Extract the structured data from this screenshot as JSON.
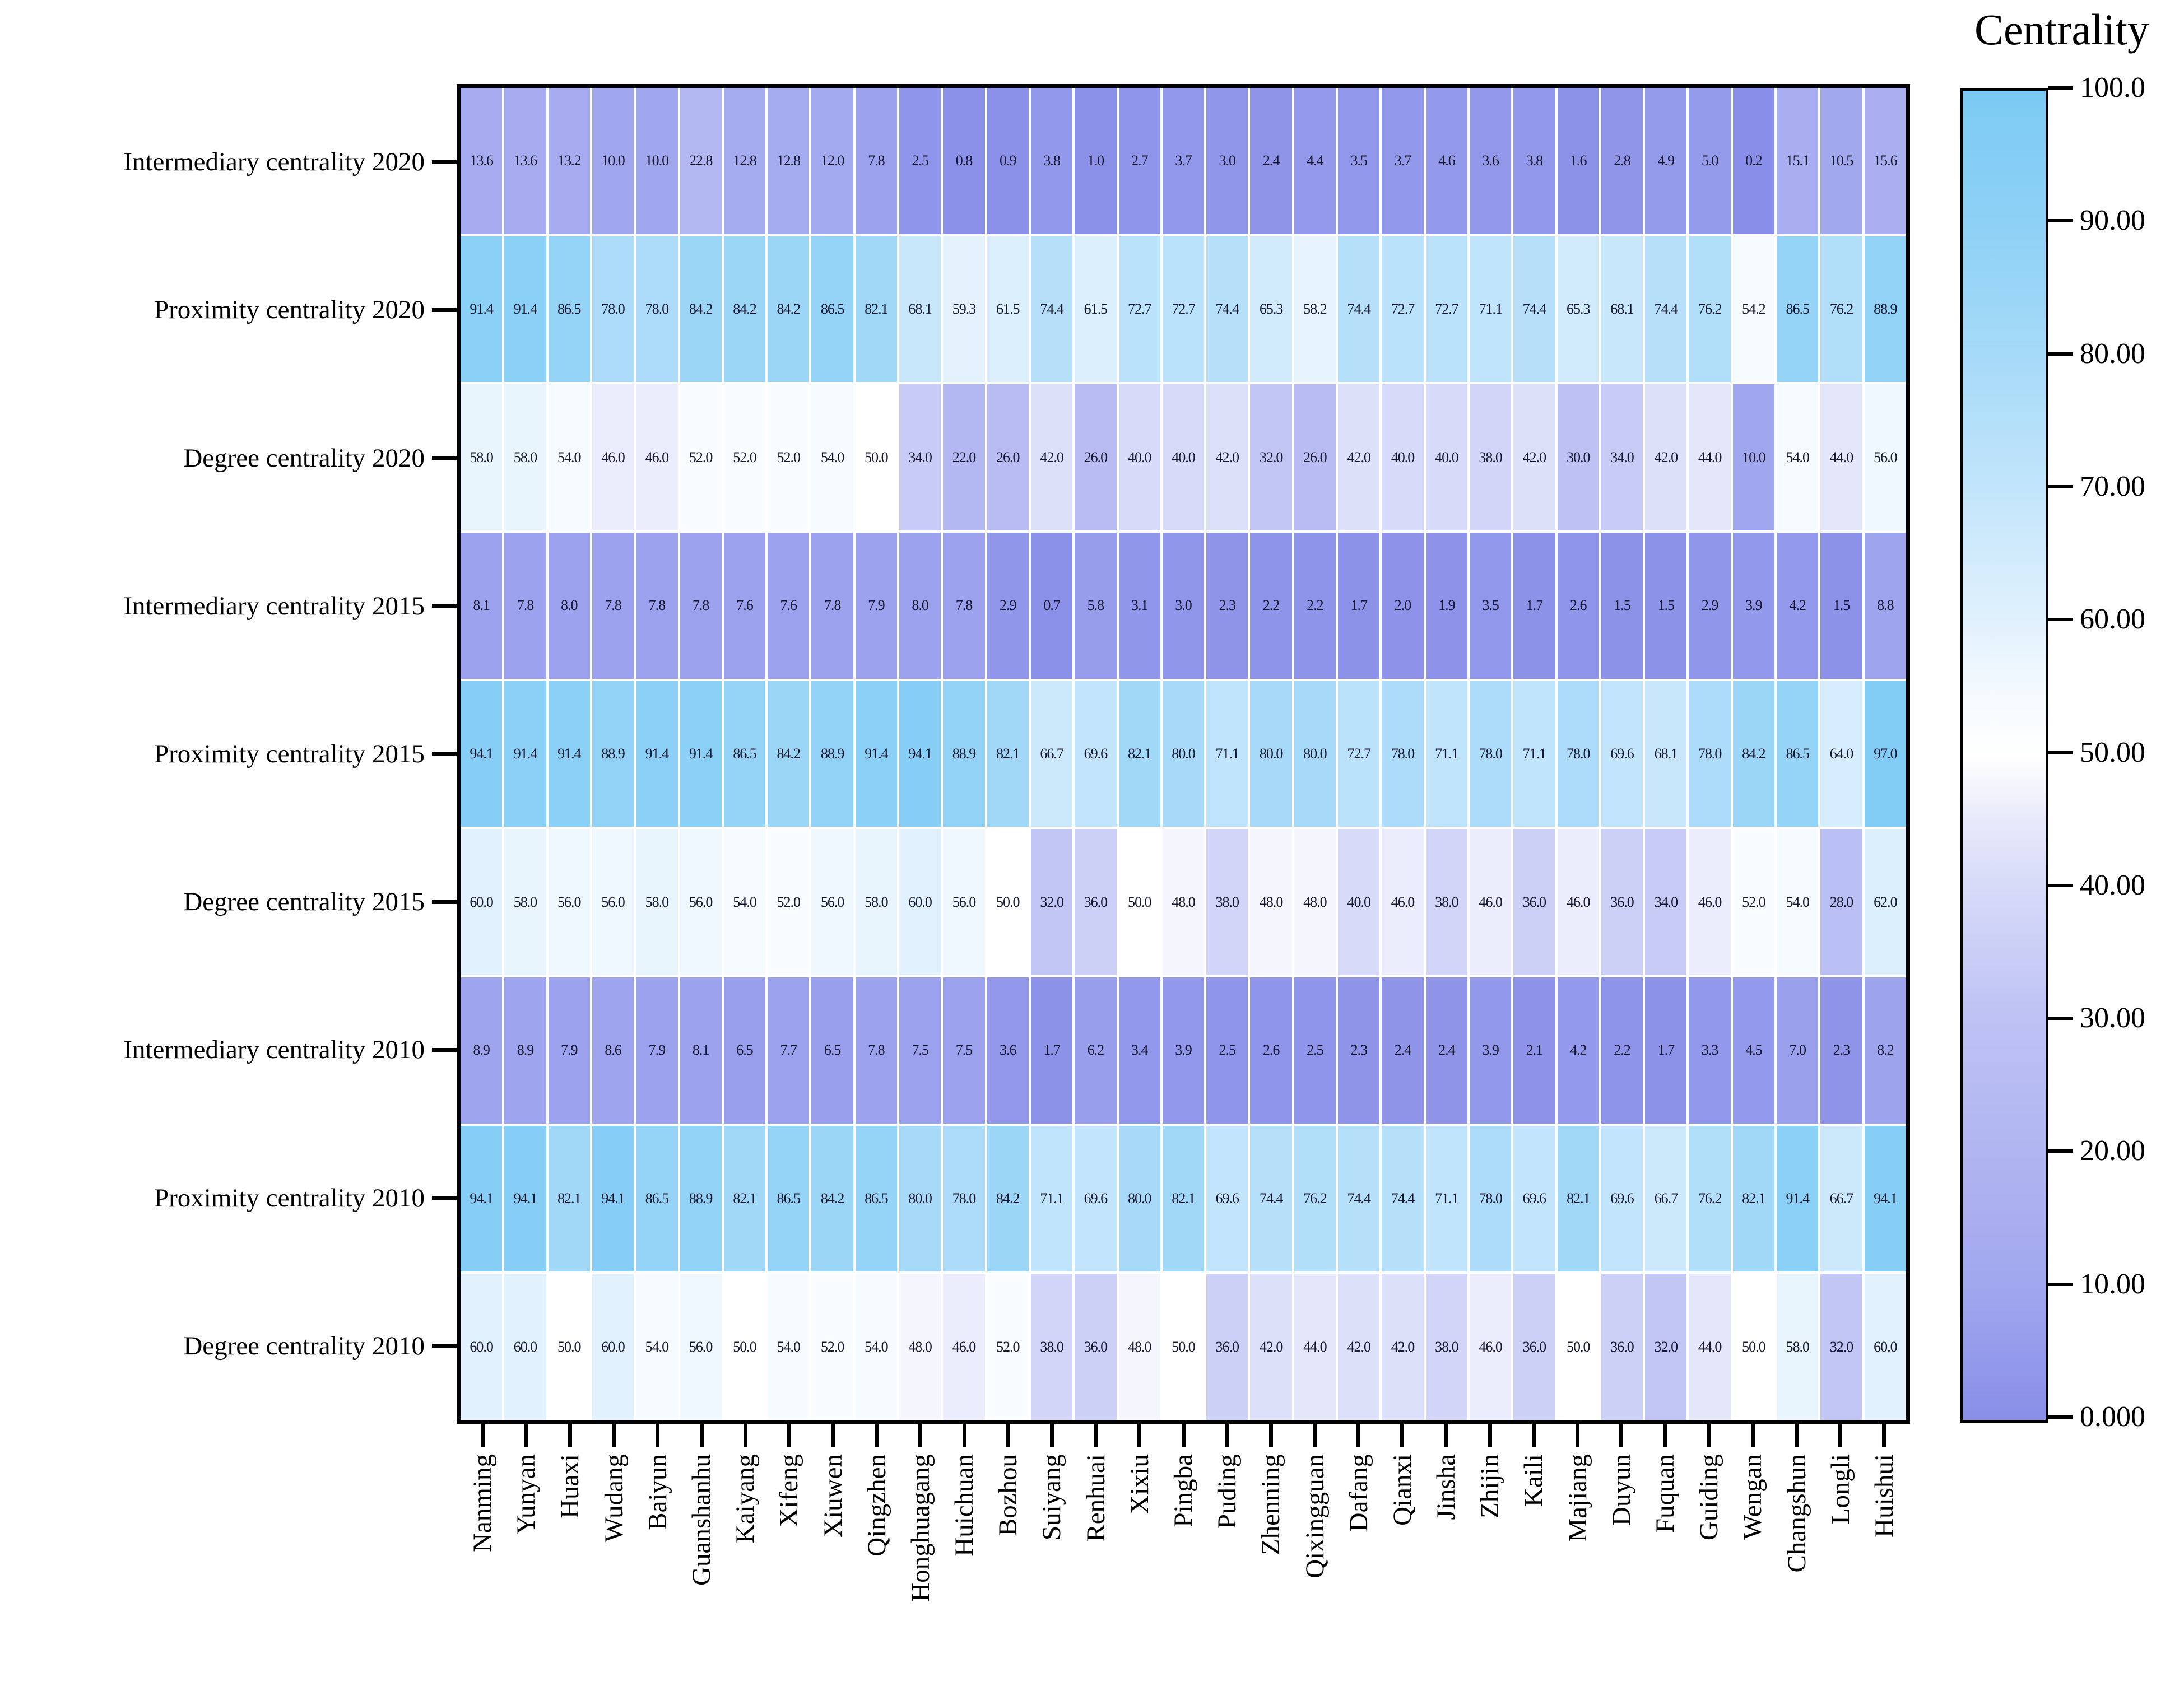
{
  "chart_data": {
    "type": "heatmap",
    "colorbar_title": "Centrality",
    "value_range": [
      0,
      100
    ],
    "grid": false,
    "legend_position": "right-colorbar",
    "categories_x": [
      "Nanming",
      "Yunyan",
      "Huaxi",
      "Wudang",
      "Baiyun",
      "Guanshanhu",
      "Kaiyang",
      "Xifeng",
      "Xiuwen",
      "Qingzhen",
      "Honghuagang",
      "Huichuan",
      "Bozhou",
      "Suiyang",
      "Renhuai",
      "Xixiu",
      "Pingba",
      "Puding",
      "Zhenning",
      "Qixingguan",
      "Dafang",
      "Qianxi",
      "Jinsha",
      "Zhijin",
      "Kaili",
      "Majiang",
      "Duyun",
      "Fuquan",
      "Guiding",
      "Wengan",
      "Changshun",
      "Longli",
      "Huishui"
    ],
    "categories_y": [
      "Intermediary centrality 2020",
      "Proximity centrality 2020",
      "Degree centrality 2020",
      "Intermediary centrality 2015",
      "Proximity centrality 2015",
      "Degree centrality 2015",
      "Intermediary centrality 2010",
      "Proximity centrality 2010",
      "Degree centrality 2010"
    ],
    "values": [
      [
        13.6,
        13.6,
        13.2,
        10.0,
        10.0,
        22.8,
        12.8,
        12.8,
        12.0,
        7.8,
        2.5,
        0.8,
        0.9,
        3.8,
        1.0,
        2.7,
        3.7,
        3.0,
        2.4,
        4.4,
        3.5,
        3.7,
        4.6,
        3.6,
        3.8,
        1.6,
        2.8,
        4.9,
        5.0,
        0.2,
        15.1,
        10.5,
        15.6
      ],
      [
        91.4,
        91.4,
        86.5,
        78.0,
        78.0,
        84.2,
        84.2,
        84.2,
        86.5,
        82.1,
        68.1,
        59.3,
        61.5,
        74.4,
        61.5,
        72.7,
        72.7,
        74.4,
        65.3,
        58.2,
        74.4,
        72.7,
        72.7,
        71.1,
        74.4,
        65.3,
        68.1,
        74.4,
        76.2,
        54.2,
        86.5,
        76.2,
        88.9
      ],
      [
        58.0,
        58.0,
        54.0,
        46.0,
        46.0,
        52.0,
        52.0,
        52.0,
        54.0,
        50.0,
        34.0,
        22.0,
        26.0,
        42.0,
        26.0,
        40.0,
        40.0,
        42.0,
        32.0,
        26.0,
        42.0,
        40.0,
        40.0,
        38.0,
        42.0,
        30.0,
        34.0,
        42.0,
        44.0,
        10.0,
        54.0,
        44.0,
        56.0
      ],
      [
        8.1,
        7.8,
        8.0,
        7.8,
        7.8,
        7.8,
        7.6,
        7.6,
        7.8,
        7.9,
        8.0,
        7.8,
        2.9,
        0.7,
        5.8,
        3.1,
        3.0,
        2.3,
        2.2,
        2.2,
        1.7,
        2.0,
        1.9,
        3.5,
        1.7,
        2.6,
        1.5,
        1.5,
        2.9,
        3.9,
        4.2,
        1.5,
        8.8
      ],
      [
        94.1,
        91.4,
        91.4,
        88.9,
        91.4,
        91.4,
        86.5,
        84.2,
        88.9,
        91.4,
        94.1,
        88.9,
        82.1,
        66.7,
        69.6,
        82.1,
        80.0,
        71.1,
        80.0,
        80.0,
        72.7,
        78.0,
        71.1,
        78.0,
        71.1,
        78.0,
        69.6,
        68.1,
        78.0,
        84.2,
        86.5,
        64.0,
        97.0
      ],
      [
        60.0,
        58.0,
        56.0,
        56.0,
        58.0,
        56.0,
        54.0,
        52.0,
        56.0,
        58.0,
        60.0,
        56.0,
        50.0,
        32.0,
        36.0,
        50.0,
        48.0,
        38.0,
        48.0,
        48.0,
        40.0,
        46.0,
        38.0,
        46.0,
        36.0,
        46.0,
        36.0,
        34.0,
        46.0,
        52.0,
        54.0,
        28.0,
        62.0
      ],
      [
        8.9,
        8.9,
        7.9,
        8.6,
        7.9,
        8.1,
        6.5,
        7.7,
        6.5,
        7.8,
        7.5,
        7.5,
        3.6,
        1.7,
        6.2,
        3.4,
        3.9,
        2.5,
        2.6,
        2.5,
        2.3,
        2.4,
        2.4,
        3.9,
        2.1,
        4.2,
        2.2,
        1.7,
        3.3,
        4.5,
        7.0,
        2.3,
        8.2
      ],
      [
        94.1,
        94.1,
        82.1,
        94.1,
        86.5,
        88.9,
        82.1,
        86.5,
        84.2,
        86.5,
        80.0,
        78.0,
        84.2,
        71.1,
        69.6,
        80.0,
        82.1,
        69.6,
        74.4,
        76.2,
        74.4,
        74.4,
        71.1,
        78.0,
        69.6,
        82.1,
        69.6,
        66.7,
        76.2,
        82.1,
        91.4,
        66.7,
        94.1
      ],
      [
        60.0,
        60.0,
        50.0,
        60.0,
        54.0,
        56.0,
        50.0,
        54.0,
        52.0,
        54.0,
        48.0,
        46.0,
        52.0,
        38.0,
        36.0,
        48.0,
        50.0,
        36.0,
        42.0,
        44.0,
        42.0,
        42.0,
        38.0,
        46.0,
        36.0,
        50.0,
        36.0,
        32.0,
        44.0,
        50.0,
        58.0,
        32.0,
        60.0
      ]
    ],
    "value_decimals": 1,
    "colorbar_ticks": [
      {
        "value": 100,
        "label": "100.0"
      },
      {
        "value": 90,
        "label": "90.00"
      },
      {
        "value": 80,
        "label": "80.00"
      },
      {
        "value": 70,
        "label": "70.00"
      },
      {
        "value": 60,
        "label": "60.00"
      },
      {
        "value": 50,
        "label": "50.00"
      },
      {
        "value": 40,
        "label": "40.00"
      },
      {
        "value": 30,
        "label": "30.00"
      },
      {
        "value": 20,
        "label": "20.00"
      },
      {
        "value": 10,
        "label": "10.00"
      },
      {
        "value": 0,
        "label": "0.000"
      }
    ],
    "color_stops": [
      [
        0,
        "#898ee8"
      ],
      [
        5,
        "#959beb"
      ],
      [
        10,
        "#a1a7ee"
      ],
      [
        20,
        "#b0b5f1"
      ],
      [
        30,
        "#bdc1f4"
      ],
      [
        40,
        "#d7daf8"
      ],
      [
        45,
        "#e7e9fb"
      ],
      [
        50,
        "#ffffff"
      ],
      [
        55,
        "#f3fafe"
      ],
      [
        60,
        "#e1f1fd"
      ],
      [
        70,
        "#c2e5fb"
      ],
      [
        80,
        "#a6daf8"
      ],
      [
        90,
        "#8ed1f6"
      ],
      [
        100,
        "#7bcaf4"
      ]
    ]
  }
}
